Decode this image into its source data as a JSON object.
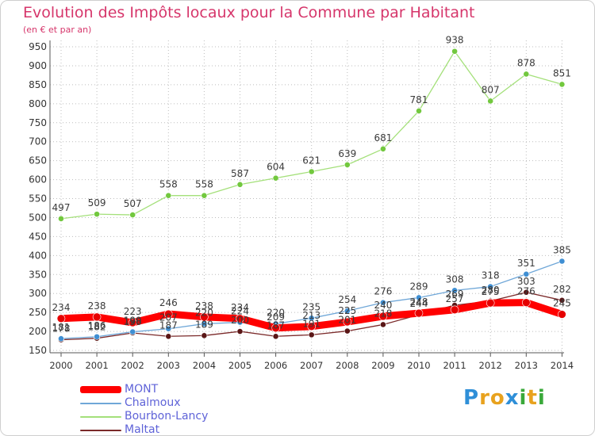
{
  "chart_data": {
    "type": "line",
    "title": "Evolution des Impôts locaux pour la Commune par Habitant",
    "subtitle": "(en € et par an)",
    "x": [
      "2000",
      "2001",
      "2002",
      "2003",
      "2004",
      "2005",
      "2006",
      "2007",
      "2008",
      "2009",
      "2010",
      "2011",
      "2012",
      "2013",
      "2014"
    ],
    "ylim": [
      150,
      950
    ],
    "yticks": [
      150,
      200,
      250,
      300,
      350,
      400,
      450,
      500,
      550,
      600,
      650,
      700,
      750,
      800,
      850,
      900,
      950
    ],
    "series": [
      {
        "name": "Maltat",
        "color": "#7b2a2a",
        "marker": "#5a1616",
        "width": 1.3,
        "values": [
          178,
          182,
          196,
          187,
          189,
          200,
          187,
          191,
          201,
          218,
          244,
          269,
          280,
          303,
          282
        ],
        "labels": [
          "178",
          "182",
          "196",
          "187",
          "189",
          "200",
          "187",
          "191",
          "201",
          "218",
          "244",
          "269",
          "280",
          "303",
          "282"
        ]
      },
      {
        "name": "Chalmoux",
        "color": "#6fa7d8",
        "marker": "#3f8fd3",
        "width": 1.3,
        "values": [
          181,
          186,
          199,
          207,
          220,
          224,
          220,
          235,
          254,
          276,
          289,
          308,
          318,
          351,
          385
        ],
        "labels": [
          "181",
          "186",
          "199",
          "207",
          "220",
          "224",
          "220",
          "235",
          "254",
          "276",
          "289",
          "308",
          "318",
          "351",
          "385"
        ]
      },
      {
        "name": "Bourbon-Lancy",
        "color": "#a4e07a",
        "marker": "#72c83e",
        "width": 1.3,
        "values": [
          497,
          509,
          507,
          558,
          558,
          587,
          604,
          621,
          639,
          681,
          781,
          938,
          807,
          878,
          851
        ],
        "labels": [
          "497",
          "509",
          "507",
          "558",
          "558",
          "587",
          "604",
          "621",
          "639",
          "681",
          "781",
          "938",
          "807",
          "878",
          "851"
        ]
      },
      {
        "name": "MONT",
        "color": "#ff0000",
        "marker": "#e60000",
        "width": 9,
        "values": [
          234,
          238,
          223,
          246,
          238,
          234,
          209,
          213,
          225,
          240,
          248,
          257,
          275,
          276,
          245
        ],
        "labels": [
          "234",
          "238",
          "223",
          "246",
          "238",
          "234",
          "209",
          "213",
          "225",
          "240",
          "248",
          "257",
          "275",
          "276",
          "245"
        ]
      }
    ],
    "legend": [
      "MONT",
      "Chalmoux",
      "Bourbon-Lancy",
      "Maltat"
    ],
    "legend_position": "bottom-left"
  },
  "logo": {
    "letters": [
      "P",
      "r",
      "o",
      "x",
      "i",
      "t",
      "i"
    ],
    "colors": [
      "#2f8fd8",
      "#e8a21e",
      "#e8a21e",
      "#2f8fd8",
      "#3aa93a",
      "#e8a21e",
      "#3aa93a"
    ]
  }
}
